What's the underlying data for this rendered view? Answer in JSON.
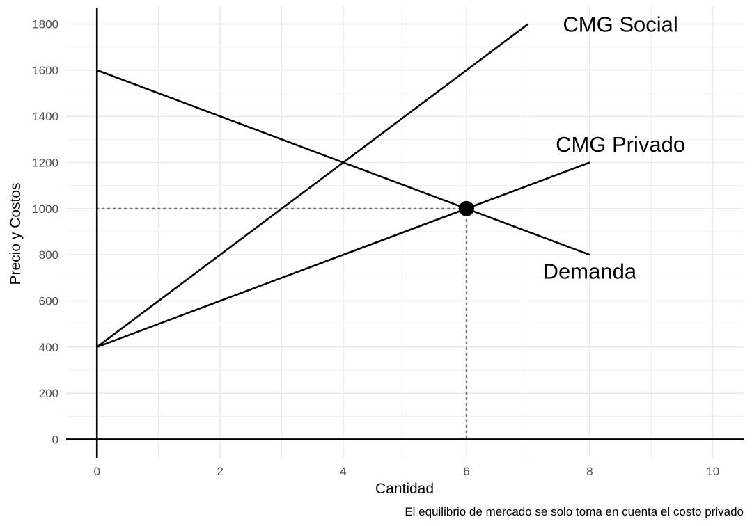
{
  "chart_data": {
    "type": "line",
    "title": "",
    "xlabel": "Cantidad",
    "ylabel": "Precio y Costos",
    "caption": "El equilibrio de mercado se solo toma en cuenta el costo privado",
    "xlim": [
      -0.5,
      10.5
    ],
    "ylim": [
      -80,
      1880
    ],
    "x_ticks": [
      0,
      2,
      4,
      6,
      8,
      10
    ],
    "y_ticks": [
      0,
      200,
      400,
      600,
      800,
      1000,
      1200,
      1400,
      1600,
      1800
    ],
    "grid": true,
    "series": [
      {
        "name": "CMG Social",
        "x": [
          0,
          7
        ],
        "y": [
          400,
          1800
        ],
        "label": "CMG Social",
        "label_at": [
          8.5,
          1800
        ]
      },
      {
        "name": "CMG Privado",
        "x": [
          0,
          8
        ],
        "y": [
          400,
          1200
        ],
        "label": "CMG Privado",
        "label_at": [
          8.5,
          1280
        ]
      },
      {
        "name": "Demanda",
        "x": [
          0,
          8
        ],
        "y": [
          1600,
          800
        ],
        "label": "Demanda",
        "label_at": [
          8.0,
          730
        ]
      }
    ],
    "equilibrium": {
      "x": 6,
      "y": 1000
    },
    "colors": {
      "line": "#000000",
      "guide": "#777777",
      "grid": "#ebebeb",
      "tick_text": "#4d4d4d"
    }
  }
}
